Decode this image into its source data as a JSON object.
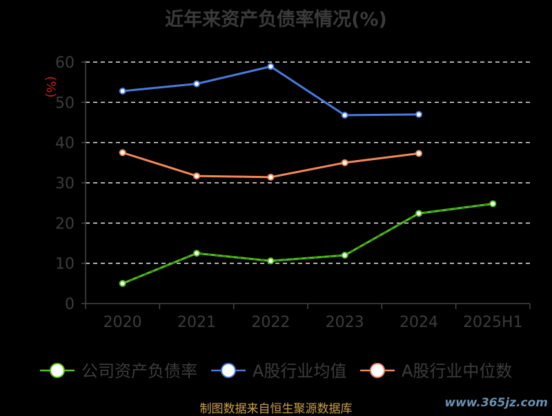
{
  "chart_data": {
    "type": "line",
    "title": "近年来资产负债率情况(%)",
    "ylabel": "(%)",
    "categories": [
      "2020",
      "2021",
      "2022",
      "2023",
      "2024",
      "2025H1"
    ],
    "ylim": [
      0,
      60
    ],
    "yticks": [
      0,
      10,
      20,
      30,
      40,
      50,
      60
    ],
    "grid": true,
    "legend_position": "bottom",
    "series": [
      {
        "name": "公司资产负债率",
        "color": "#52c41a",
        "values": [
          5.0,
          12.5,
          10.6,
          12.0,
          22.4,
          24.8
        ]
      },
      {
        "name": "A股行业均值",
        "color": "#4a7bdc",
        "values": [
          52.8,
          54.6,
          58.9,
          46.8,
          47.0,
          null
        ]
      },
      {
        "name": "A股行业中位数",
        "color": "#f5895a",
        "values": [
          37.5,
          31.7,
          31.4,
          35.0,
          37.3,
          null
        ]
      }
    ]
  },
  "footer": "制图数据来自恒生聚源数据库",
  "watermark": "www.365jz.com"
}
